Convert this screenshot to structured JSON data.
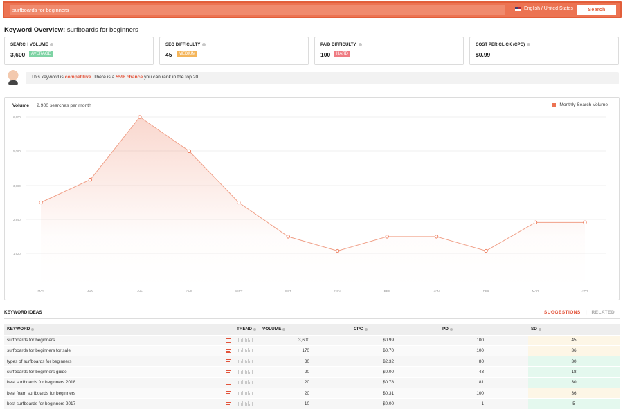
{
  "search": {
    "query": "surfboards for beginners",
    "locale": "English / United States",
    "button": "Search"
  },
  "overview": {
    "prefix": "Keyword Overview:",
    "keyword": "surfboards for beginners"
  },
  "metrics": [
    {
      "label": "SEARCH VOLUME",
      "value": "3,600",
      "badge": "AVERAGE",
      "badge_color": "#7ed3a4"
    },
    {
      "label": "SEO DIFFICULTY",
      "value": "45",
      "badge": "MEDIUM",
      "badge_color": "#f4b55a"
    },
    {
      "label": "PAID DIFFICULTY",
      "value": "100",
      "badge": "HARD",
      "badge_color": "#ef7b82"
    },
    {
      "label": "COST PER CLICK (CPC)",
      "value": "$0.99",
      "badge": "",
      "badge_color": ""
    }
  ],
  "advice": {
    "t1": "This keyword is ",
    "highlight1": "competitive",
    "t2": ". There is a ",
    "highlight2": "55% chance",
    "t3": " you can rank in the top 20."
  },
  "chart": {
    "label": "Volume",
    "sub": "2,900 searches per month",
    "legend": "Monthly Search Volume"
  },
  "chart_data": {
    "type": "area",
    "categories": [
      "MAY",
      "JUN",
      "JUL",
      "AUG",
      "SEPT",
      "OCT",
      "NOV",
      "DEC",
      "JAN",
      "FEB",
      "MAR",
      "APR"
    ],
    "series": [
      {
        "name": "Monthly Search Volume",
        "values": [
          3600,
          4400,
          6600,
          5400,
          3600,
          2400,
          1900,
          2400,
          2400,
          1900,
          2900,
          2900
        ]
      }
    ],
    "yticks": [
      "6,600",
      "5,080",
      "3,880",
      "2,840",
      "1,920"
    ],
    "ylim": [
      600,
      6600
    ],
    "color": "#ec7352",
    "grid": true
  },
  "ideas": {
    "title": "KEYWORD IDEAS",
    "tab_active": "SUGGESTIONS",
    "tab_other": "RELATED",
    "columns": [
      "KEYWORD",
      "TREND",
      "VOLUME",
      "CPC",
      "PD",
      "SD"
    ],
    "rows": [
      {
        "keyword": "surfboards for beginners",
        "volume": "3,600",
        "cpc": "$0.99",
        "pd": "100",
        "sd": "45",
        "sd_color": "#fdf6e6"
      },
      {
        "keyword": "surfboards for beginners for sale",
        "volume": "170",
        "cpc": "$0.70",
        "pd": "100",
        "sd": "36",
        "sd_color": "#fdf6e6"
      },
      {
        "keyword": "types of surfboards for beginners",
        "volume": "30",
        "cpc": "$2.32",
        "pd": "80",
        "sd": "30",
        "sd_color": "#e4f8ee"
      },
      {
        "keyword": "surfboards for beginners guide",
        "volume": "20",
        "cpc": "$0.00",
        "pd": "43",
        "sd": "18",
        "sd_color": "#e4f8ee"
      },
      {
        "keyword": "best surfboards for beginners 2018",
        "volume": "20",
        "cpc": "$0.78",
        "pd": "81",
        "sd": "30",
        "sd_color": "#e4f8ee"
      },
      {
        "keyword": "best foam surfboards for beginners",
        "volume": "20",
        "cpc": "$0.31",
        "pd": "100",
        "sd": "36",
        "sd_color": "#fdf6e6"
      },
      {
        "keyword": "best surfboards for beginners 2017",
        "volume": "10",
        "cpc": "$0.00",
        "pd": "1",
        "sd": "5",
        "sd_color": "#e4f8ee"
      }
    ]
  }
}
